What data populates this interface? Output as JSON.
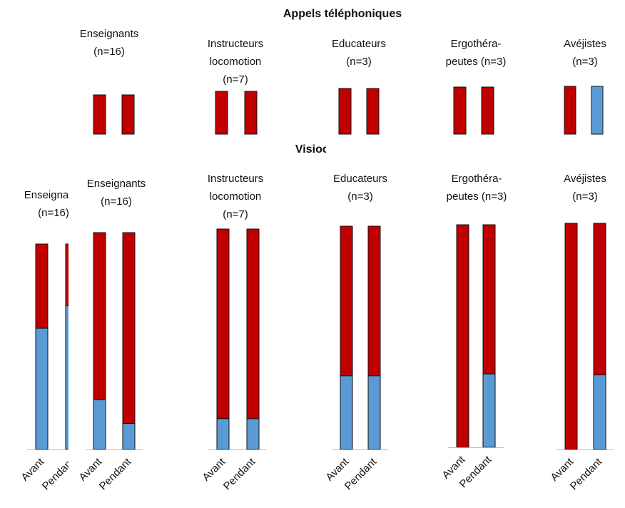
{
  "appels": {
    "title": "Appels téléphoniques",
    "charts": [
      {
        "type": "bar",
        "stacked": true,
        "title_lines": [
          "Enseignants",
          "(n=16)"
        ],
        "ylim": [
          0,
          100
        ],
        "series": [
          {
            "color": "#5b9bd5",
            "values": [
              0,
              0
            ]
          },
          {
            "color": "#c00000",
            "values": [
              100,
              100
            ]
          }
        ]
      },
      {
        "type": "bar",
        "stacked": true,
        "title_lines": [
          "Instructeurs",
          "locomotion",
          "(n=7)"
        ],
        "ylim": [
          0,
          100
        ],
        "series": [
          {
            "color": "#5b9bd5",
            "values": [
              0,
              0
            ]
          },
          {
            "color": "#c00000",
            "values": [
              100,
              100
            ]
          }
        ]
      },
      {
        "type": "bar",
        "stacked": true,
        "title_lines": [
          "Educateurs",
          "(n=3)"
        ],
        "ylim": [
          0,
          100
        ],
        "series": [
          {
            "color": "#5b9bd5",
            "values": [
              0,
              0
            ]
          },
          {
            "color": "#c00000",
            "values": [
              100,
              100
            ]
          }
        ]
      },
      {
        "type": "bar",
        "stacked": true,
        "title_lines": [
          "Ergothéra-",
          "peutes (n=3)"
        ],
        "ylim": [
          0,
          100
        ],
        "series": [
          {
            "color": "#5b9bd5",
            "values": [
              0,
              0
            ]
          },
          {
            "color": "#c00000",
            "values": [
              100,
              100
            ]
          }
        ]
      },
      {
        "type": "bar",
        "stacked": true,
        "title_lines": [
          "Avéjistes",
          "(n=3)"
        ],
        "ylim": [
          0,
          100
        ],
        "series": [
          {
            "color": "#5b9bd5",
            "values": [
              0,
              100
            ]
          },
          {
            "color": "#c00000",
            "values": [
              100,
              0
            ]
          }
        ]
      }
    ]
  },
  "visio": {
    "title": "Visioconférences",
    "charts": [
      {
        "type": "bar",
        "stacked": true,
        "title_lines": [
          "Enseignants",
          "(n=16)"
        ],
        "categories": [
          "Avant",
          "Pendant"
        ],
        "ylim": [
          0,
          100
        ],
        "series": [
          {
            "color": "#5b9bd5",
            "values": [
              59,
              70
            ]
          },
          {
            "color": "#c00000",
            "values": [
              41,
              30
            ]
          }
        ]
      },
      {
        "type": "bar",
        "stacked": true,
        "title_lines": [
          "Enseignants",
          "(n=16)"
        ],
        "categories": [
          "Avant",
          "Pendant"
        ],
        "ylim": [
          0,
          100
        ],
        "series": [
          {
            "color": "#5b9bd5",
            "values": [
              23,
              12
            ]
          },
          {
            "color": "#c00000",
            "values": [
              77,
              88
            ]
          }
        ]
      },
      {
        "type": "bar",
        "stacked": true,
        "title_lines": [
          "Instructeurs",
          "locomotion",
          "(n=7)"
        ],
        "categories": [
          "Avant",
          "Pendant"
        ],
        "ylim": [
          0,
          100
        ],
        "series": [
          {
            "color": "#5b9bd5",
            "values": [
              14,
              14
            ]
          },
          {
            "color": "#c00000",
            "values": [
              86,
              86
            ]
          }
        ]
      },
      {
        "type": "bar",
        "stacked": true,
        "title_lines": [
          "Educateurs",
          "(n=3)"
        ],
        "categories": [
          "Avant",
          "Pendant"
        ],
        "ylim": [
          0,
          100
        ],
        "series": [
          {
            "color": "#5b9bd5",
            "values": [
              33,
              33
            ]
          },
          {
            "color": "#c00000",
            "values": [
              67,
              67
            ]
          }
        ]
      },
      {
        "type": "bar",
        "stacked": true,
        "title_lines": [
          "Ergothéra-",
          "peutes (n=3)"
        ],
        "categories": [
          "Avant",
          "Pendant"
        ],
        "ylim": [
          0,
          100
        ],
        "series": [
          {
            "color": "#5b9bd5",
            "values": [
              0,
              33
            ]
          },
          {
            "color": "#c00000",
            "values": [
              100,
              67
            ]
          }
        ]
      },
      {
        "type": "bar",
        "stacked": true,
        "title_lines": [
          "Avéjistes",
          "(n=3)"
        ],
        "categories": [
          "Avant",
          "Pendant"
        ],
        "ylim": [
          0,
          100
        ],
        "series": [
          {
            "color": "#5b9bd5",
            "values": [
              0,
              33
            ]
          },
          {
            "color": "#c00000",
            "values": [
              100,
              67
            ]
          }
        ]
      }
    ]
  }
}
